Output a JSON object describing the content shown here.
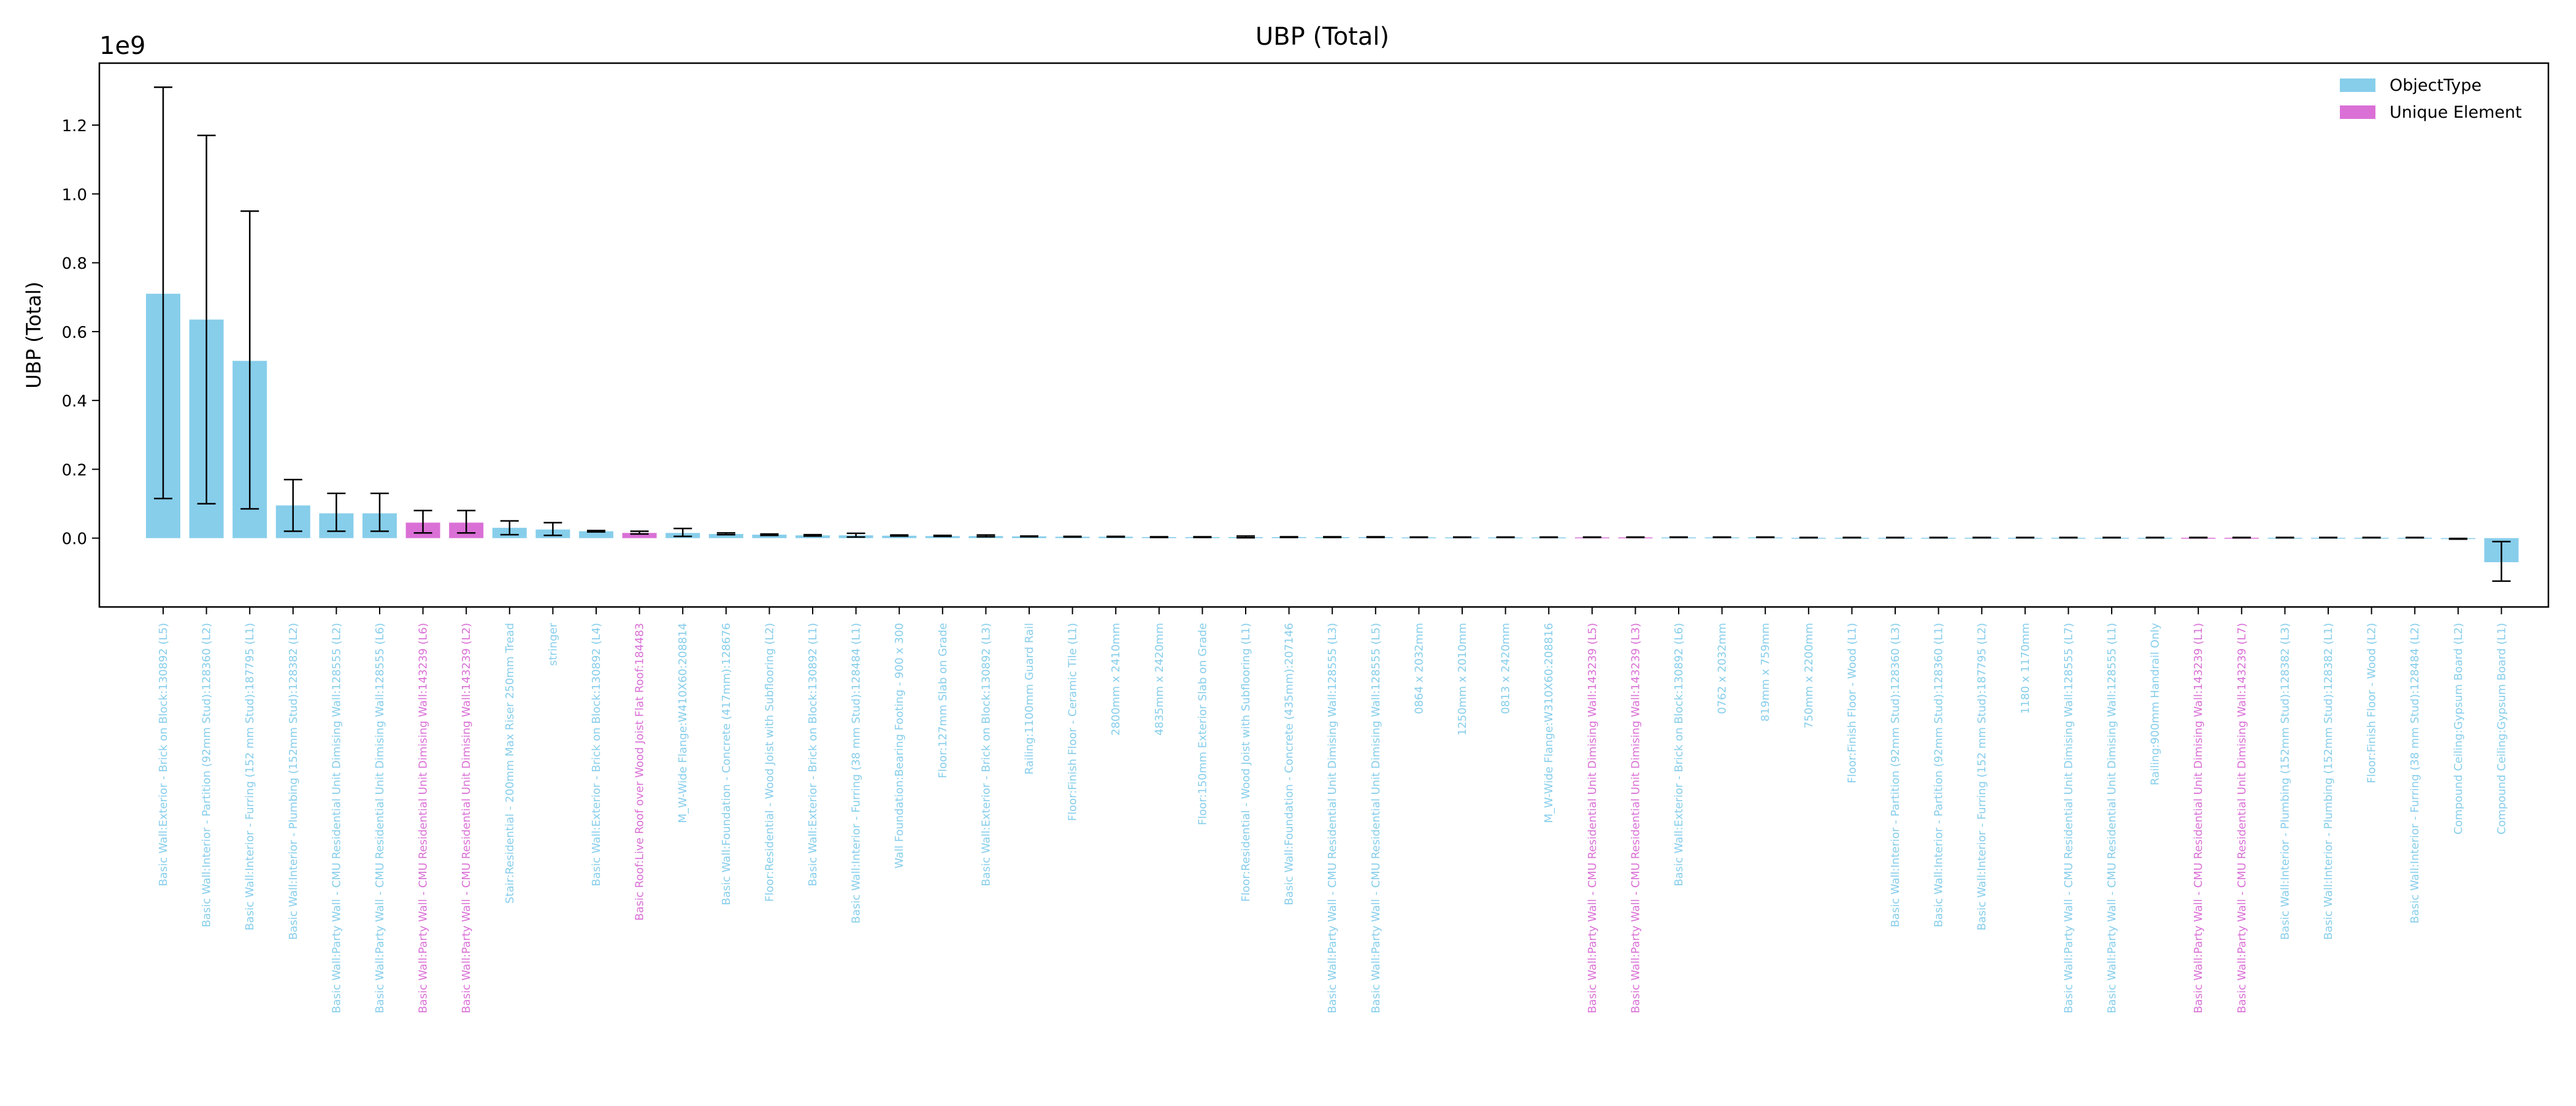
{
  "chart_data": {
    "type": "bar",
    "title": "UBP (Total)",
    "ylabel": "UBP (Total)",
    "xlabel": "",
    "y_scale_label": "1e9",
    "y_scale": 1000000000,
    "ylim": [
      -0.2,
      1.38
    ],
    "yticks": [
      0.0,
      0.2,
      0.4,
      0.6,
      0.8,
      1.0,
      1.2
    ],
    "ytick_labels": [
      "0.0",
      "0.2",
      "0.4",
      "0.6",
      "0.8",
      "1.0",
      "1.2"
    ],
    "grid": false,
    "legend_position": "top-right",
    "series": [
      {
        "name": "ObjectType",
        "color": "#87CEEB"
      },
      {
        "name": "Unique Element",
        "color": "#DA70D6"
      }
    ],
    "categories": [
      "Basic Wall:Exterior - Brick on Block:130892 (L5)",
      "Basic Wall:Interior - Partition (92mm Stud):128360 (L2)",
      "Basic Wall:Interior - Furring (152 mm Stud):187795 (L1)",
      "Basic Wall:Interior - Plumbing (152mm Stud):128382 (L2)",
      "Basic Wall:Party Wall - CMU Residential Unit Dimising Wall:128555 (L2)",
      "Basic Wall:Party Wall - CMU Residential Unit Dimising Wall:128555 (L6)",
      "Basic Wall:Party Wall - CMU Residential Unit Dimising Wall:143239 (L6)",
      "Basic Wall:Party Wall - CMU Residential Unit Dimising Wall:143239 (L2)",
      "Stair:Residential - 200mm Max Riser 250mm Tread",
      "stringer",
      "Basic Wall:Exterior - Brick on Block:130892 (L4)",
      "Basic Roof:Live Roof over Wood Joist Flat Roof:184483",
      "M_W-Wide Flange:W410X60:208814",
      "Basic Wall:Foundation - Concrete (417mm):128676",
      "Floor:Residential - Wood Joist with Subflooring (L2)",
      "Basic Wall:Exterior - Brick on Block:130892 (L1)",
      "Basic Wall:Interior - Furring (38 mm Stud):128484 (L1)",
      "Wall Foundation:Bearing Footing - 900 x 300",
      "Floor:127mm Slab on Grade",
      "Basic Wall:Exterior - Brick on Block:130892 (L3)",
      "Railing:1100mm Guard Rail",
      "Floor:Finish Floor - Ceramic Tile (L1)",
      "2800mm x 2410mm",
      "4835mm x 2420mm",
      "Floor:150mm Exterior Slab on Grade",
      "Floor:Residential - Wood Joist with Subflooring (L1)",
      "Basic Wall:Foundation - Concrete (435mm):207146",
      "Basic Wall:Party Wall - CMU Residential Unit Dimising Wall:128555 (L3)",
      "Basic Wall:Party Wall - CMU Residential Unit Dimising Wall:128555 (L5)",
      "0864 x 2032mm",
      "1250mm x 2010mm",
      "0813 x 2420mm",
      "M_W-Wide Flange:W310X60:208816",
      "Basic Wall:Party Wall - CMU Residential Unit Dimising Wall:143239 (L5)",
      "Basic Wall:Party Wall - CMU Residential Unit Dimising Wall:143239 (L3)",
      "Basic Wall:Exterior - Brick on Block:130892 (L6)",
      "0762 x 2032mm",
      "819mm x 759mm",
      "750mm x 2200mm",
      "Floor:Finish Floor - Wood (L1)",
      "Basic Wall:Interior - Partition (92mm Stud):128360 (L3)",
      "Basic Wall:Interior - Partition (92mm Stud):128360 (L1)",
      "Basic Wall:Interior - Furring (152 mm Stud):187795 (L2)",
      "1180 x 1170mm",
      "Basic Wall:Party Wall - CMU Residential Unit Dimising Wall:128555 (L7)",
      "Basic Wall:Party Wall - CMU Residential Unit Dimising Wall:128555 (L1)",
      "Railing:900mm Handrail Only",
      "Basic Wall:Party Wall - CMU Residential Unit Dimising Wall:143239 (L1)",
      "Basic Wall:Party Wall - CMU Residential Unit Dimising Wall:143239 (L7)",
      "Basic Wall:Interior - Plumbing (152mm Stud):128382 (L3)",
      "Basic Wall:Interior - Plumbing (152mm Stud):128382 (L1)",
      "Floor:Finish Floor - Wood (L2)",
      "Basic Wall:Interior - Furring (38 mm Stud):128484 (L2)",
      "Compound Ceiling:Gypsum Board (L2)",
      "Compound Ceiling:Gypsum Board (L1)"
    ],
    "groups": [
      "ObjectType",
      "ObjectType",
      "ObjectType",
      "ObjectType",
      "ObjectType",
      "ObjectType",
      "Unique Element",
      "Unique Element",
      "ObjectType",
      "ObjectType",
      "ObjectType",
      "Unique Element",
      "ObjectType",
      "ObjectType",
      "ObjectType",
      "ObjectType",
      "ObjectType",
      "ObjectType",
      "ObjectType",
      "ObjectType",
      "ObjectType",
      "ObjectType",
      "ObjectType",
      "ObjectType",
      "ObjectType",
      "ObjectType",
      "ObjectType",
      "ObjectType",
      "ObjectType",
      "ObjectType",
      "ObjectType",
      "ObjectType",
      "ObjectType",
      "Unique Element",
      "Unique Element",
      "ObjectType",
      "ObjectType",
      "ObjectType",
      "ObjectType",
      "ObjectType",
      "ObjectType",
      "ObjectType",
      "ObjectType",
      "ObjectType",
      "ObjectType",
      "ObjectType",
      "ObjectType",
      "Unique Element",
      "Unique Element",
      "ObjectType",
      "ObjectType",
      "ObjectType",
      "ObjectType",
      "ObjectType",
      "ObjectType"
    ],
    "values": [
      0.71,
      0.635,
      0.515,
      0.095,
      0.072,
      0.072,
      0.045,
      0.045,
      0.03,
      0.025,
      0.02,
      0.015,
      0.015,
      0.012,
      0.01,
      0.008,
      0.008,
      0.007,
      0.006,
      0.006,
      0.005,
      0.004,
      0.004,
      0.003,
      0.003,
      0.003,
      0.003,
      0.003,
      0.003,
      0.002,
      0.002,
      0.002,
      0.002,
      0.002,
      0.002,
      0.002,
      0.002,
      0.002,
      0.001,
      0.001,
      0.001,
      0.001,
      0.001,
      0.001,
      0.001,
      0.001,
      0.001,
      0.001,
      0.001,
      0.001,
      0.001,
      0.001,
      0.001,
      -0.002,
      -0.07
    ],
    "error_low": [
      0.115,
      0.1,
      0.085,
      0.02,
      0.02,
      0.02,
      0.015,
      0.015,
      0.01,
      0.008,
      0.018,
      0.012,
      0.005,
      0.01,
      0.008,
      0.006,
      0.003,
      0.006,
      0.005,
      0.004,
      0.004,
      0.003,
      0.003,
      0.002,
      0.002,
      0.001,
      0.002,
      0.002,
      0.002,
      0.002,
      0.002,
      0.002,
      0.002,
      0.002,
      0.002,
      0.002,
      0.002,
      0.002,
      0.001,
      0.001,
      0.001,
      0.001,
      0.001,
      0.001,
      0.001,
      0.001,
      0.001,
      0.001,
      0.001,
      0.001,
      0.001,
      0.001,
      0.001,
      -0.003,
      -0.125
    ],
    "error_high": [
      1.31,
      1.17,
      0.95,
      0.17,
      0.13,
      0.13,
      0.08,
      0.08,
      0.05,
      0.045,
      0.022,
      0.02,
      0.028,
      0.015,
      0.012,
      0.01,
      0.014,
      0.009,
      0.008,
      0.009,
      0.006,
      0.005,
      0.005,
      0.004,
      0.004,
      0.006,
      0.004,
      0.004,
      0.004,
      0.003,
      0.003,
      0.003,
      0.003,
      0.003,
      0.003,
      0.003,
      0.003,
      0.003,
      0.002,
      0.002,
      0.002,
      0.002,
      0.002,
      0.002,
      0.002,
      0.002,
      0.002,
      0.002,
      0.002,
      0.002,
      0.002,
      0.002,
      0.002,
      -0.001,
      -0.01
    ]
  }
}
